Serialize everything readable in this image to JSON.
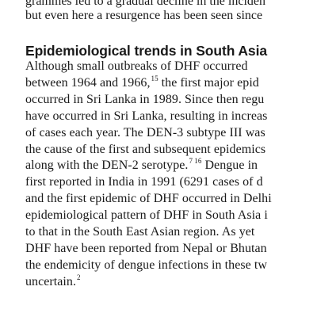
{
  "preceding_text": [
    "grammes led to a gradual decline in the inciden",
    "but even here a resurgence has been seen since"
  ],
  "section": {
    "heading": "Epidemiological trends in South Asia",
    "lines": [
      {
        "text": "Although   small   outbreaks   of   DHF   occurred",
        "sup": "",
        "after": "",
        "sup2": "",
        "tail": ""
      },
      {
        "text": "between 1964 and 1966,",
        "sup": "15",
        "after": " the first major epid",
        "sup2": "",
        "tail": ""
      },
      {
        "text": "occurred in Sri Lanka in 1989. Since then regu",
        "sup": "",
        "after": "",
        "sup2": "",
        "tail": ""
      },
      {
        "text": "have occurred in Sri Lanka, resulting in increas",
        "sup": "",
        "after": "",
        "sup2": "",
        "tail": ""
      },
      {
        "text": "of cases each year. The DEN-3 subtype III was",
        "sup": "",
        "after": "",
        "sup2": "",
        "tail": ""
      },
      {
        "text": "the cause of the first and subsequent epidemics",
        "sup": "",
        "after": "",
        "sup2": "",
        "tail": ""
      },
      {
        "text": "along with the DEN-2 serotype.",
        "sup": "7 16",
        "after": " Dengue in",
        "sup2": "",
        "tail": ""
      },
      {
        "text": "first reported in India in 1991 (6291 cases of d",
        "sup": "",
        "after": "",
        "sup2": "",
        "tail": ""
      },
      {
        "text": "and the first epidemic of DHF occurred in Delhi",
        "sup": "",
        "after": "",
        "sup2": "",
        "tail": ""
      },
      {
        "text": "epidemiological pattern of DHF in South Asia i",
        "sup": "",
        "after": "",
        "sup2": "",
        "tail": ""
      },
      {
        "text": "to that in the South East Asian region. As yet",
        "sup": "",
        "after": "",
        "sup2": "",
        "tail": ""
      },
      {
        "text": "DHF have been reported from Nepal or Bhutan",
        "sup": "",
        "after": "",
        "sup2": "",
        "tail": ""
      },
      {
        "text": "the endemicity of dengue infections in these tw",
        "sup": "",
        "after": "",
        "sup2": "",
        "tail": ""
      },
      {
        "text": "uncertain.",
        "sup": "2",
        "after": "",
        "sup2": "",
        "tail": ""
      }
    ]
  }
}
